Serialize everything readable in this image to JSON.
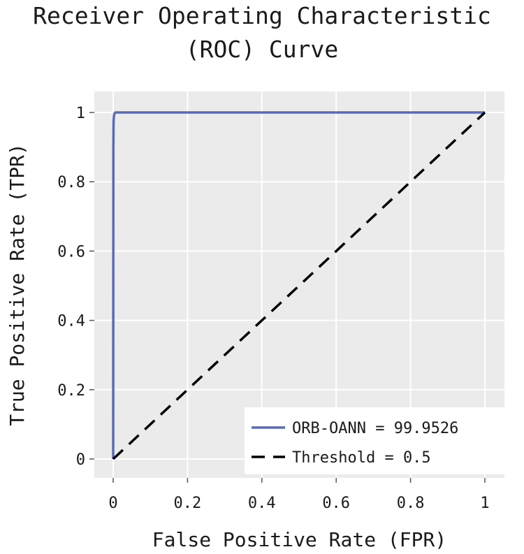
{
  "chart_data": {
    "type": "line",
    "title_lines": [
      "Receiver Operating Characteristic",
      "(ROC) Curve"
    ],
    "xlabel": "False Positive Rate (FPR)",
    "ylabel": "True Positive Rate (TPR)",
    "xlim": [
      0,
      1
    ],
    "ylim": [
      0,
      1
    ],
    "x_ticks": [
      0,
      0.2,
      0.4,
      0.6,
      0.8,
      1
    ],
    "y_ticks": [
      0,
      0.2,
      0.4,
      0.6,
      0.8,
      1
    ],
    "x_tick_labels": [
      "0",
      "0.2",
      "0.4",
      "0.6",
      "0.8",
      "1"
    ],
    "y_tick_labels": [
      "0",
      "0.2",
      "0.4",
      "0.6",
      "0.8",
      "1"
    ],
    "grid": true,
    "background_color": "#ebebeb",
    "grid_color": "#ffffff",
    "legend_position": "bottom-right",
    "series": [
      {
        "name": "ORB-OANN = 99.9526",
        "style": "solid",
        "color": "#5b6aba",
        "x": [
          0,
          0.0005,
          0.001,
          0.002,
          0.004,
          0.006,
          0.02,
          0.2,
          0.5,
          1
        ],
        "y": [
          0,
          0.9,
          0.97,
          0.99,
          0.998,
          1,
          1,
          1,
          1,
          1
        ]
      },
      {
        "name": "Threshold = 0.5",
        "style": "dashed",
        "color": "#000000",
        "x": [
          0,
          1
        ],
        "y": [
          0,
          1
        ]
      }
    ]
  }
}
